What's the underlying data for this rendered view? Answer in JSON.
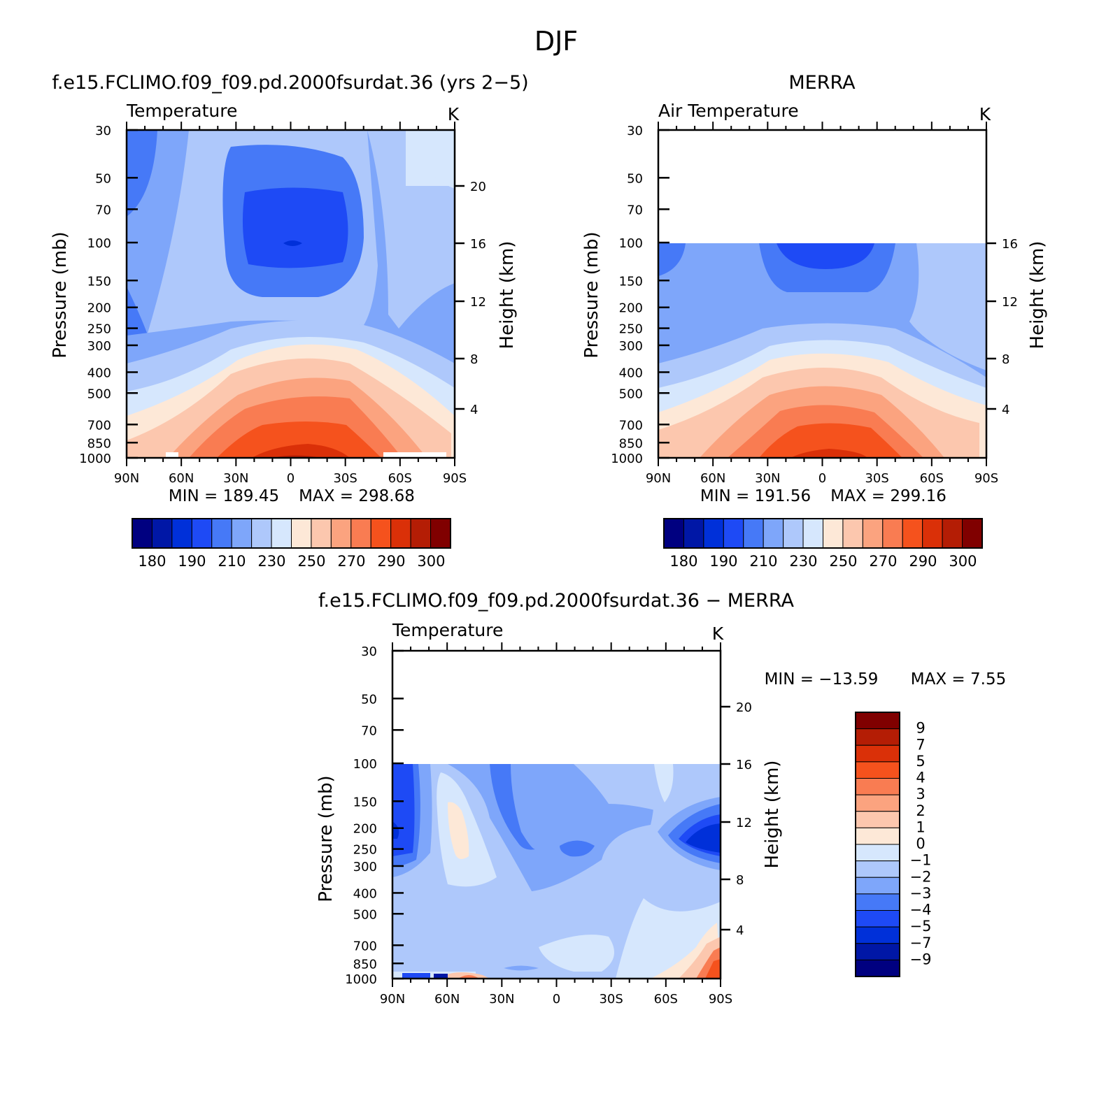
{
  "figure_title": "DJF",
  "colors": {
    "temperature_scale": [
      "#000080",
      "#0017a6",
      "#0030d9",
      "#1e4af5",
      "#4679f7",
      "#7ea6fa",
      "#aec8fb",
      "#d6e7fd",
      "#fde8d7",
      "#fcc7ae",
      "#fba37f",
      "#f97c52",
      "#f5521d",
      "#da3008",
      "#b41d05",
      "#800000"
    ],
    "difference_scale": [
      "#000080",
      "#0017a6",
      "#0030d9",
      "#1e4af5",
      "#4679f7",
      "#7ea6fa",
      "#aec8fb",
      "#d6e7fd",
      "#fde8d7",
      "#fcc7ae",
      "#fba37f",
      "#f97c52",
      "#f5521d",
      "#da3008",
      "#b41d05",
      "#800000"
    ]
  },
  "chart_data": [
    {
      "type": "heatmap",
      "panel_title": "f.e15.FCLIMO.f09_f09.pd.2000fsurdat.36 (yrs 2−5)",
      "title": "Temperature",
      "units": "K",
      "xlabel": "",
      "ylabel": "Pressure (mb)",
      "y2label": "Height (km)",
      "x_ticks": [
        "90N",
        "60N",
        "30N",
        "0",
        "30S",
        "60S",
        "90S"
      ],
      "y_ticks": [
        "30",
        "50",
        "70",
        "100",
        "150",
        "200",
        "250",
        "300",
        "400",
        "500",
        "700",
        "850",
        "1000"
      ],
      "y2_ticks": [
        "20",
        "16",
        "12",
        "8",
        "4"
      ],
      "ylim": [
        1000,
        30
      ],
      "y_scale": "log",
      "min_label": "MIN = 189.45",
      "max_label": "MAX = 298.68",
      "min": 189.45,
      "max": 298.68,
      "colorbar_labels": [
        "180",
        "190",
        "210",
        "230",
        "250",
        "270",
        "290",
        "300"
      ]
    },
    {
      "type": "heatmap",
      "panel_title": "MERRA",
      "title": "Air Temperature",
      "units": "K",
      "xlabel": "",
      "ylabel": "Pressure (mb)",
      "y2label": "Height (km)",
      "x_ticks": [
        "90N",
        "60N",
        "30N",
        "0",
        "30S",
        "60S",
        "90S"
      ],
      "y_ticks": [
        "30",
        "50",
        "70",
        "100",
        "150",
        "200",
        "250",
        "300",
        "400",
        "500",
        "700",
        "850",
        "1000"
      ],
      "y2_ticks": [
        "16",
        "12",
        "8",
        "4"
      ],
      "ylim": [
        1000,
        30
      ],
      "y_scale": "log",
      "data_top_pressure": 100,
      "min_label": "MIN = 191.56",
      "max_label": "MAX = 299.16",
      "min": 191.56,
      "max": 299.16,
      "colorbar_labels": [
        "180",
        "190",
        "210",
        "230",
        "250",
        "270",
        "290",
        "300"
      ]
    },
    {
      "type": "heatmap",
      "panel_title": "f.e15.FCLIMO.f09_f09.pd.2000fsurdat.36 − MERRA",
      "title": "Temperature",
      "units": "K",
      "xlabel": "",
      "ylabel": "Pressure (mb)",
      "y2label": "Height (km)",
      "x_ticks": [
        "90N",
        "60N",
        "30N",
        "0",
        "30S",
        "60S",
        "90S"
      ],
      "y_ticks": [
        "30",
        "50",
        "70",
        "100",
        "150",
        "200",
        "250",
        "300",
        "400",
        "500",
        "700",
        "850",
        "1000"
      ],
      "y2_ticks": [
        "20",
        "16",
        "12",
        "8",
        "4"
      ],
      "ylim": [
        1000,
        30
      ],
      "y_scale": "log",
      "data_top_pressure": 100,
      "min_label": "MIN = −13.59",
      "max_label": "MAX = 7.55",
      "min": -13.59,
      "max": 7.55,
      "colorbar_labels": [
        "9",
        "7",
        "5",
        "4",
        "3",
        "2",
        "1",
        "0",
        "−1",
        "−2",
        "−3",
        "−4",
        "−5",
        "−7",
        "−9"
      ]
    }
  ]
}
